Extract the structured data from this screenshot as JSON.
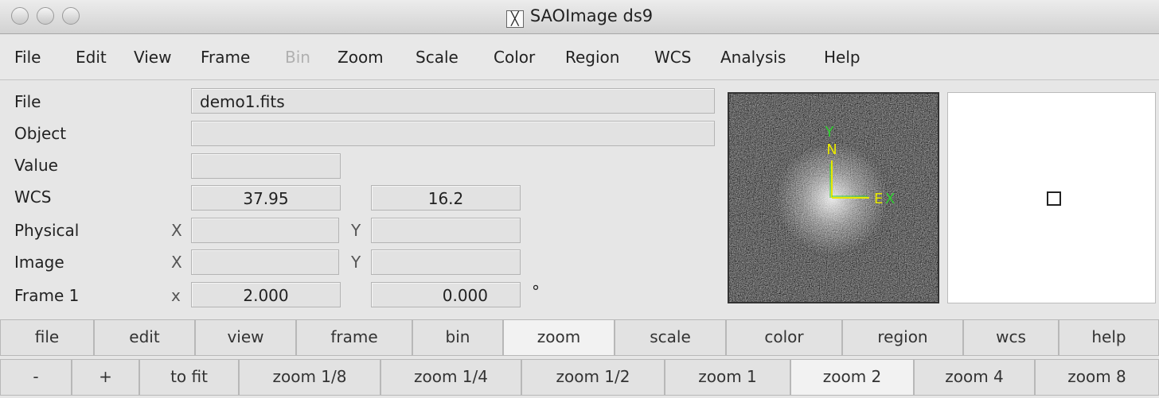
{
  "window": {
    "title": "SAOImage ds9"
  },
  "menu": [
    {
      "label": "File",
      "enabled": true
    },
    {
      "label": "Edit",
      "enabled": true
    },
    {
      "label": "View",
      "enabled": true
    },
    {
      "label": "Frame",
      "enabled": true
    },
    {
      "label": "Bin",
      "enabled": false
    },
    {
      "label": "Zoom",
      "enabled": true
    },
    {
      "label": "Scale",
      "enabled": true
    },
    {
      "label": "Color",
      "enabled": true
    },
    {
      "label": "Region",
      "enabled": true
    },
    {
      "label": "WCS",
      "enabled": true
    },
    {
      "label": "Analysis",
      "enabled": true
    },
    {
      "label": "Help",
      "enabled": true
    }
  ],
  "info": {
    "file": {
      "label": "File",
      "value": "demo1.fits"
    },
    "object": {
      "label": "Object"
    },
    "value": {
      "label": "Value"
    },
    "wcs": {
      "label": "WCS",
      "x": "37.95",
      "y": "16.2"
    },
    "physical": {
      "label": "Physical",
      "x_label": "X",
      "y_label": "Y"
    },
    "image": {
      "label": "Image",
      "x_label": "X",
      "y_label": "Y"
    },
    "frame": {
      "label": "Frame 1",
      "x_label": "x",
      "x": "2.000",
      "y": "0.000",
      "unit": "°"
    }
  },
  "panner": {
    "compass": {
      "y": "Y",
      "n": "N",
      "e": "E",
      "x": "X"
    }
  },
  "buttons": {
    "main": {
      "items": [
        "file",
        "edit",
        "view",
        "frame",
        "bin",
        "zoom",
        "scale",
        "color",
        "region",
        "wcs",
        "help"
      ],
      "selected": 5
    },
    "zoom": {
      "items": [
        "-",
        "+",
        "to fit",
        "zoom 1/8",
        "zoom 1/4",
        "zoom 1/2",
        "zoom 1",
        "zoom 2",
        "zoom 4",
        "zoom 8"
      ],
      "selected": 7
    }
  }
}
